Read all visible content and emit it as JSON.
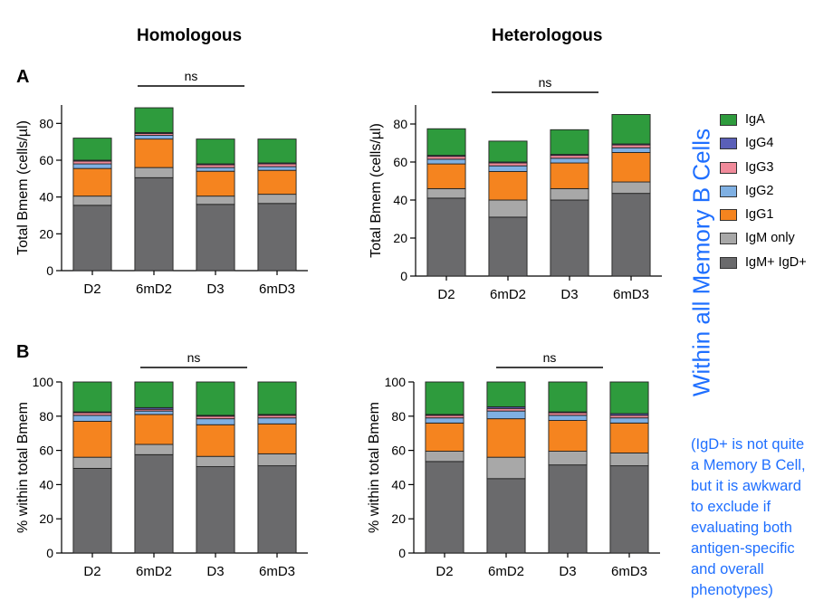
{
  "column_titles": [
    "Homologous",
    "Heterologous"
  ],
  "panel_letters": [
    "A",
    "B"
  ],
  "side_title": "Within all Memory B Cells",
  "note_lines": [
    "(IgD+ is not quite",
    "a Memory B Cell,",
    "but it is awkward",
    "to exclude if",
    "evaluating both",
    "antigen-specific",
    "and overall",
    "phenotypes)"
  ],
  "legend": [
    {
      "label": "IgA",
      "color": "#2e9b3d"
    },
    {
      "label": "IgG4",
      "color": "#5a5fb8"
    },
    {
      "label": "IgG3",
      "color": "#f08a9a"
    },
    {
      "label": "IgG2",
      "color": "#7fb0e3"
    },
    {
      "label": "IgG1",
      "color": "#f5841f"
    },
    {
      "label": "IgM only",
      "color": "#a8a8a8"
    },
    {
      "label": "IgM+ IgD+",
      "color": "#6a6a6c"
    }
  ],
  "chart_data": [
    {
      "type": "bar",
      "stacked": true,
      "panel": "A",
      "column": "Homologous",
      "categories": [
        "D2",
        "6mD2",
        "D3",
        "6mD3"
      ],
      "ylabel": "Total Bmem (cells/µl)",
      "ylim": [
        0,
        90
      ],
      "yticks": [
        0,
        20,
        40,
        60,
        80
      ],
      "annotation": "ns",
      "series": [
        {
          "name": "IgM+ IgD+",
          "values": [
            35.5,
            50.5,
            36,
            36.5
          ]
        },
        {
          "name": "IgM only",
          "values": [
            5,
            5.5,
            4.5,
            5
          ]
        },
        {
          "name": "IgG1",
          "values": [
            15,
            15.5,
            13.5,
            13
          ]
        },
        {
          "name": "IgG2",
          "values": [
            2.5,
            2,
            2,
            2
          ]
        },
        {
          "name": "IgG3",
          "values": [
            1.5,
            1,
            1.5,
            1.5
          ]
        },
        {
          "name": "IgG4",
          "values": [
            0.5,
            0.5,
            0.5,
            0.5
          ]
        },
        {
          "name": "IgA",
          "values": [
            12,
            13.5,
            13.5,
            13
          ]
        }
      ]
    },
    {
      "type": "bar",
      "stacked": true,
      "panel": "A",
      "column": "Heterologous",
      "categories": [
        "D2",
        "6mD2",
        "D3",
        "6mD3"
      ],
      "ylabel": "Total Bmem (cells/µl)",
      "ylim": [
        0,
        90
      ],
      "yticks": [
        0,
        20,
        40,
        60,
        80
      ],
      "annotation": "ns",
      "series": [
        {
          "name": "IgM+ IgD+",
          "values": [
            41,
            31,
            40,
            43.5
          ]
        },
        {
          "name": "IgM only",
          "values": [
            5,
            9,
            6,
            6
          ]
        },
        {
          "name": "IgG1",
          "values": [
            13,
            15,
            13.5,
            15.5
          ]
        },
        {
          "name": "IgG2",
          "values": [
            2.5,
            3,
            2.5,
            2.5
          ]
        },
        {
          "name": "IgG3",
          "values": [
            1.5,
            1.5,
            1.5,
            1.5
          ]
        },
        {
          "name": "IgG4",
          "values": [
            0.5,
            0.5,
            0.5,
            0.5
          ]
        },
        {
          "name": "IgA",
          "values": [
            14,
            11,
            13,
            15.5
          ]
        }
      ]
    },
    {
      "type": "bar",
      "stacked": true,
      "panel": "B",
      "column": "Homologous",
      "categories": [
        "D2",
        "6mD2",
        "D3",
        "6mD3"
      ],
      "ylabel": "% within total Bmem",
      "ylim": [
        0,
        100
      ],
      "yticks": [
        0,
        20,
        40,
        60,
        80,
        100
      ],
      "annotation": "ns",
      "series": [
        {
          "name": "IgM+ IgD+",
          "values": [
            49.5,
            57.5,
            50.5,
            51
          ]
        },
        {
          "name": "IgM only",
          "values": [
            6.5,
            6,
            6,
            7
          ]
        },
        {
          "name": "IgG1",
          "values": [
            21,
            17.5,
            18.5,
            17.5
          ]
        },
        {
          "name": "IgG2",
          "values": [
            3.5,
            2,
            3.5,
            3.5
          ]
        },
        {
          "name": "IgG3",
          "values": [
            1.5,
            1,
            1.5,
            1.5
          ]
        },
        {
          "name": "IgG4",
          "values": [
            0.5,
            1,
            0.5,
            0.5
          ]
        },
        {
          "name": "IgA",
          "values": [
            17.5,
            15,
            19.5,
            19
          ]
        }
      ]
    },
    {
      "type": "bar",
      "stacked": true,
      "panel": "B",
      "column": "Heterologous",
      "categories": [
        "D2",
        "6mD2",
        "D3",
        "6mD3"
      ],
      "ylabel": "% within total Bmem",
      "ylim": [
        0,
        100
      ],
      "yticks": [
        0,
        20,
        40,
        60,
        80,
        100
      ],
      "annotation": "ns",
      "series": [
        {
          "name": "IgM+ IgD+",
          "values": [
            53.5,
            43.5,
            51.5,
            51
          ]
        },
        {
          "name": "IgM only",
          "values": [
            6,
            12.5,
            8,
            7.5
          ]
        },
        {
          "name": "IgG1",
          "values": [
            16.5,
            22.5,
            18,
            17.5
          ]
        },
        {
          "name": "IgG2",
          "values": [
            3,
            4.5,
            3,
            3
          ]
        },
        {
          "name": "IgG3",
          "values": [
            1.5,
            1.5,
            1.5,
            1.5
          ]
        },
        {
          "name": "IgG4",
          "values": [
            0.5,
            1,
            0.5,
            1
          ]
        },
        {
          "name": "IgA",
          "values": [
            19,
            14.5,
            17.5,
            18.5
          ]
        }
      ]
    }
  ]
}
